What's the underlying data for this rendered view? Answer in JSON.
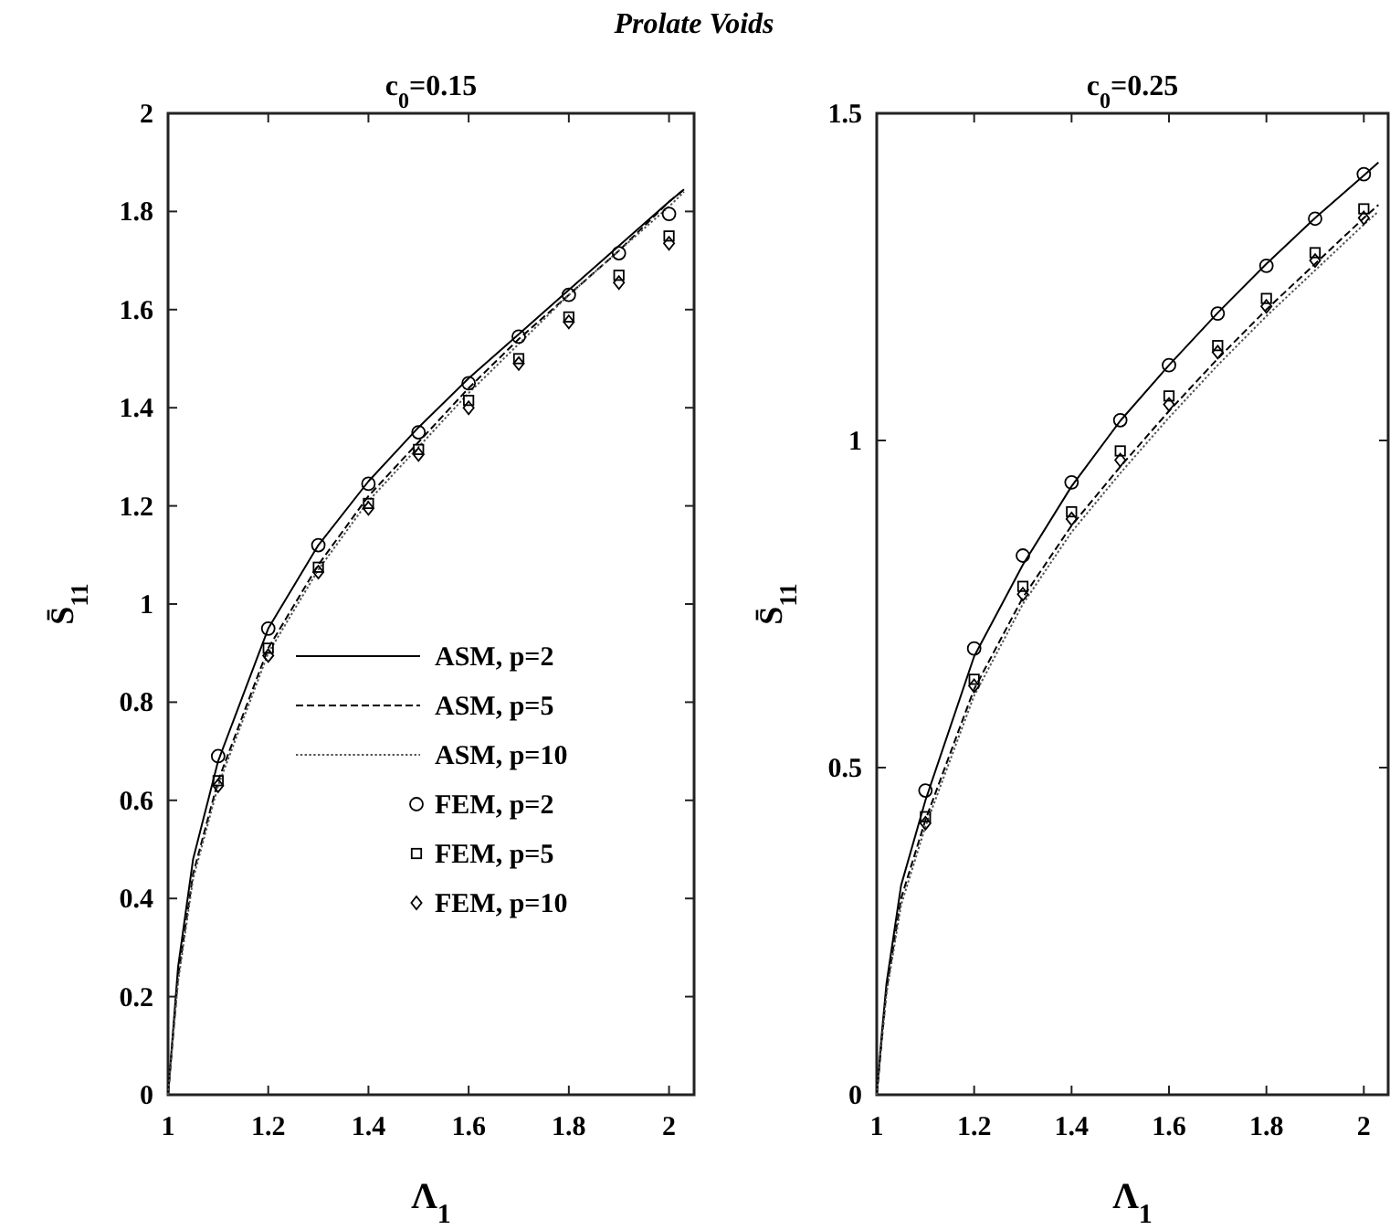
{
  "chart_data": [
    {
      "type": "line",
      "title": "c$_{0}$=0.15",
      "annotations": [
        "Prolate Voids"
      ],
      "xlabel": "Λ$_{1}$",
      "ylabel": "S̄$_{11}$",
      "xlim": [
        1,
        2.05
      ],
      "xticks": [
        1,
        1.2,
        1.4,
        1.6,
        1.8,
        2
      ],
      "ylim": [
        0,
        2
      ],
      "yticks": [
        0,
        0.2,
        0.4,
        0.6,
        0.8,
        1,
        1.2,
        1.4,
        1.6,
        1.8,
        2
      ],
      "grid": false,
      "legend": "right",
      "series": [
        {
          "name": "ASM, p=2",
          "color": "#000000",
          "line_style": "solid",
          "marker": "none",
          "x": [
            1,
            1.01,
            1.02,
            1.05,
            1.1,
            1.2,
            1.3,
            1.4,
            1.5,
            1.6,
            1.7,
            1.8,
            1.9,
            2,
            2.03
          ],
          "values": [
            0,
            0.13,
            0.26,
            0.48,
            0.68,
            0.95,
            1.12,
            1.25,
            1.36,
            1.46,
            1.55,
            1.64,
            1.73,
            1.82,
            1.845
          ]
        },
        {
          "name": "ASM, p=5",
          "color": "#000000",
          "line_style": "dashed",
          "marker": "none",
          "x": [
            1,
            1.01,
            1.02,
            1.05,
            1.1,
            1.2,
            1.3,
            1.4,
            1.5,
            1.6,
            1.7,
            1.8,
            1.9,
            2,
            2.03
          ],
          "values": [
            0,
            0.12,
            0.24,
            0.45,
            0.64,
            0.91,
            1.08,
            1.22,
            1.33,
            1.44,
            1.54,
            1.63,
            1.72,
            1.82,
            1.845
          ]
        },
        {
          "name": "ASM, p=10",
          "color": "#555555",
          "line_style": "dotted",
          "marker": "none",
          "x": [
            1,
            1.01,
            1.02,
            1.05,
            1.1,
            1.2,
            1.3,
            1.4,
            1.5,
            1.6,
            1.7,
            1.8,
            1.9,
            2,
            2.03
          ],
          "values": [
            0,
            0.12,
            0.23,
            0.44,
            0.63,
            0.9,
            1.07,
            1.21,
            1.32,
            1.43,
            1.53,
            1.63,
            1.72,
            1.81,
            1.84
          ]
        },
        {
          "name": "FEM, p=2",
          "type": "scatter",
          "color": "#000000",
          "marker": "circle",
          "x": [
            1.1,
            1.2,
            1.3,
            1.4,
            1.5,
            1.6,
            1.7,
            1.8,
            1.9,
            2
          ],
          "values": [
            0.69,
            0.95,
            1.12,
            1.245,
            1.35,
            1.45,
            1.545,
            1.63,
            1.715,
            1.795
          ]
        },
        {
          "name": "FEM, p=5",
          "type": "scatter",
          "color": "#000000",
          "marker": "square",
          "x": [
            1.1,
            1.2,
            1.3,
            1.4,
            1.5,
            1.6,
            1.7,
            1.8,
            1.9,
            2
          ],
          "values": [
            0.64,
            0.91,
            1.075,
            1.205,
            1.315,
            1.415,
            1.5,
            1.585,
            1.67,
            1.75
          ]
        },
        {
          "name": "FEM, p=10",
          "type": "scatter",
          "color": "#000000",
          "marker": "diamond",
          "x": [
            1.1,
            1.2,
            1.3,
            1.4,
            1.5,
            1.6,
            1.7,
            1.8,
            1.9,
            2
          ],
          "values": [
            0.63,
            0.895,
            1.065,
            1.195,
            1.305,
            1.4,
            1.49,
            1.575,
            1.655,
            1.735
          ]
        }
      ]
    },
    {
      "type": "line",
      "title": "c$_{0}$=0.25",
      "xlabel": "Λ$_{1}$",
      "ylabel": "S̄$_{11}$",
      "xlim": [
        1,
        2.05
      ],
      "xticks": [
        1,
        1.2,
        1.4,
        1.6,
        1.8,
        2
      ],
      "ylim": [
        0,
        1.5
      ],
      "yticks": [
        0,
        0.5,
        1,
        1.5
      ],
      "grid": false,
      "legend": false,
      "series": [
        {
          "color": "#000000",
          "line_style": "solid",
          "marker": "none",
          "x": [
            1,
            1.01,
            1.02,
            1.05,
            1.1,
            1.2,
            1.3,
            1.4,
            1.5,
            1.6,
            1.7,
            1.8,
            1.9,
            2,
            2.03
          ],
          "values": [
            0,
            0.09,
            0.17,
            0.32,
            0.45,
            0.67,
            0.81,
            0.93,
            1.03,
            1.115,
            1.195,
            1.27,
            1.34,
            1.405,
            1.425
          ]
        },
        {
          "color": "#000000",
          "line_style": "dashed",
          "marker": "none",
          "x": [
            1,
            1.01,
            1.02,
            1.05,
            1.1,
            1.2,
            1.3,
            1.4,
            1.5,
            1.6,
            1.7,
            1.8,
            1.9,
            2,
            2.03
          ],
          "values": [
            0,
            0.08,
            0.16,
            0.3,
            0.42,
            0.62,
            0.76,
            0.87,
            0.96,
            1.045,
            1.125,
            1.2,
            1.27,
            1.34,
            1.36
          ]
        },
        {
          "color": "#555555",
          "line_style": "dotted",
          "marker": "none",
          "x": [
            1,
            1.01,
            1.02,
            1.05,
            1.1,
            1.2,
            1.3,
            1.4,
            1.5,
            1.6,
            1.7,
            1.8,
            1.9,
            2,
            2.03
          ],
          "values": [
            0,
            0.08,
            0.155,
            0.29,
            0.41,
            0.61,
            0.75,
            0.86,
            0.95,
            1.035,
            1.115,
            1.19,
            1.26,
            1.33,
            1.35
          ]
        },
        {
          "type": "scatter",
          "color": "#000000",
          "marker": "circle",
          "x": [
            1.1,
            1.2,
            1.3,
            1.4,
            1.5,
            1.6,
            1.7,
            1.8,
            1.9,
            2
          ],
          "values": [
            0.465,
            0.682,
            0.824,
            0.936,
            1.031,
            1.115,
            1.194,
            1.267,
            1.339,
            1.407
          ]
        },
        {
          "type": "scatter",
          "color": "#000000",
          "marker": "square",
          "x": [
            1.1,
            1.2,
            1.3,
            1.4,
            1.5,
            1.6,
            1.7,
            1.8,
            1.9,
            2
          ],
          "values": [
            0.425,
            0.635,
            0.777,
            0.891,
            0.984,
            1.068,
            1.145,
            1.217,
            1.287,
            1.354
          ]
        },
        {
          "type": "scatter",
          "color": "#000000",
          "marker": "diamond",
          "x": [
            1.1,
            1.2,
            1.3,
            1.4,
            1.5,
            1.6,
            1.7,
            1.8,
            1.9,
            2
          ],
          "values": [
            0.415,
            0.625,
            0.765,
            0.88,
            0.97,
            1.055,
            1.135,
            1.205,
            1.275,
            1.34
          ]
        }
      ]
    }
  ]
}
